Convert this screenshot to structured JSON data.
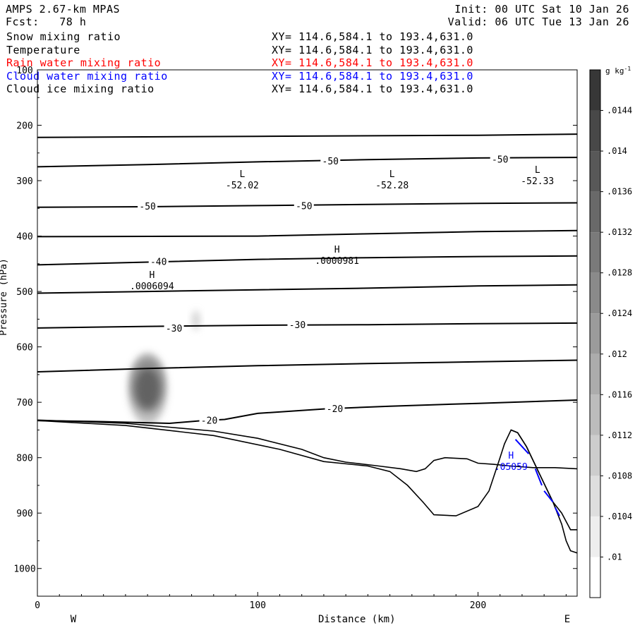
{
  "header": {
    "model": "AMPS 2.67-km MPAS",
    "forecast": "Fcst:   78 h",
    "init": "Init: 00 UTC Sat 10 Jan 26",
    "valid": "Valid: 06 UTC Tue 13 Jan 26"
  },
  "fields": [
    {
      "name": "Snow mixing ratio",
      "xy": "XY= 114.6,584.1 to 193.4,631.0",
      "color": "#000000"
    },
    {
      "name": "Temperature",
      "xy": "XY= 114.6,584.1 to 193.4,631.0",
      "color": "#000000"
    },
    {
      "name": "Rain water mixing ratio",
      "xy": "XY= 114.6,584.1 to 193.4,631.0",
      "color": "#ff0000"
    },
    {
      "name": "Cloud water mixing ratio",
      "xy": "XY= 114.6,584.1 to 193.4,631.0",
      "color": "#0000ff"
    },
    {
      "name": "Cloud ice mixing ratio",
      "xy": "XY= 114.6,584.1 to 193.4,631.0",
      "color": "#000000"
    }
  ],
  "chart_data": {
    "type": "cross-section",
    "xlabel": "Distance (km)",
    "ylabel": "Pressure (hPa)",
    "xlim": [
      0,
      245
    ],
    "ylim": [
      1050,
      100
    ],
    "x_ticks": [
      "0",
      "100",
      "200"
    ],
    "y_ticks": [
      "100",
      "200",
      "300",
      "400",
      "500",
      "600",
      "700",
      "800",
      "900",
      "1000"
    ],
    "left_end_label": "W",
    "right_end_label": "E",
    "colorbar": {
      "unit": "g kg",
      "unit_exp": "-1",
      "ticks": [
        ".01",
        ".0104",
        ".0108",
        ".0112",
        ".0116",
        ".012",
        ".0124",
        ".0128",
        ".0132",
        ".0136",
        ".014",
        ".0144"
      ]
    },
    "contour_labels": [
      {
        "text": "-50",
        "x": 133,
        "y": 264
      },
      {
        "text": "-50",
        "x": 210,
        "y": 261
      },
      {
        "text": "-50",
        "x": 50,
        "y": 346
      },
      {
        "text": "-50",
        "x": 121,
        "y": 345
      },
      {
        "text": "-40",
        "x": 55,
        "y": 446
      },
      {
        "text": "-30",
        "x": 62,
        "y": 566
      },
      {
        "text": "-30",
        "x": 118,
        "y": 560
      },
      {
        "text": "-20",
        "x": 135,
        "y": 711
      },
      {
        "text": "-20",
        "x": 78,
        "y": 732
      }
    ],
    "extrema": [
      {
        "kind": "L",
        "value": "-52.02",
        "x": 93,
        "y": 304,
        "color": "#000000"
      },
      {
        "kind": "L",
        "value": "-52.28",
        "x": 161,
        "y": 304,
        "color": "#000000"
      },
      {
        "kind": "L",
        "value": "-52.33",
        "x": 227,
        "y": 296,
        "color": "#000000"
      },
      {
        "kind": "H",
        "value": ".0000981",
        "x": 136,
        "y": 440,
        "color": "#000000"
      },
      {
        "kind": "H",
        "value": ".0006094",
        "x": 52,
        "y": 486,
        "color": "#000000"
      },
      {
        "kind": "H",
        "value": ".05059",
        "x": 215,
        "y": 812,
        "color": "#0000ff"
      }
    ],
    "isotherms": [
      {
        "p": [
          [
            0,
            222
          ],
          [
            100,
            220
          ],
          [
            200,
            218
          ],
          [
            245,
            216
          ]
        ]
      },
      {
        "p": [
          [
            0,
            275
          ],
          [
            50,
            271
          ],
          [
            100,
            266
          ],
          [
            150,
            262
          ],
          [
            200,
            259
          ],
          [
            245,
            258
          ]
        ]
      },
      {
        "p": [
          [
            0,
            348
          ],
          [
            50,
            347
          ],
          [
            100,
            345
          ],
          [
            150,
            343
          ],
          [
            200,
            341
          ],
          [
            245,
            340
          ]
        ]
      },
      {
        "p": [
          [
            0,
            401
          ],
          [
            100,
            400
          ],
          [
            150,
            396
          ],
          [
            200,
            392
          ],
          [
            245,
            390
          ]
        ]
      },
      {
        "p": [
          [
            0,
            452
          ],
          [
            50,
            447
          ],
          [
            100,
            442
          ],
          [
            150,
            439
          ],
          [
            200,
            437
          ],
          [
            245,
            436
          ]
        ]
      },
      {
        "p": [
          [
            0,
            503
          ],
          [
            50,
            500
          ],
          [
            100,
            497
          ],
          [
            150,
            494
          ],
          [
            200,
            490
          ],
          [
            245,
            488
          ]
        ]
      },
      {
        "p": [
          [
            0,
            566
          ],
          [
            50,
            563
          ],
          [
            100,
            561
          ],
          [
            150,
            560
          ],
          [
            200,
            558
          ],
          [
            245,
            557
          ]
        ]
      },
      {
        "p": [
          [
            0,
            645
          ],
          [
            50,
            639
          ],
          [
            100,
            634
          ],
          [
            150,
            630
          ],
          [
            200,
            627
          ],
          [
            245,
            624
          ]
        ]
      },
      {
        "p": [
          [
            0,
            733
          ],
          [
            30,
            735
          ],
          [
            60,
            738
          ],
          [
            75,
            733
          ],
          [
            85,
            731
          ],
          [
            100,
            720
          ],
          [
            130,
            712
          ],
          [
            160,
            707
          ],
          [
            200,
            702
          ],
          [
            245,
            696
          ]
        ]
      }
    ],
    "terrain_lines": [
      {
        "p": [
          [
            0,
            732
          ],
          [
            20,
            735
          ],
          [
            40,
            738
          ],
          [
            60,
            745
          ],
          [
            80,
            752
          ],
          [
            100,
            765
          ],
          [
            120,
            785
          ],
          [
            130,
            800
          ],
          [
            140,
            808
          ],
          [
            155,
            815
          ],
          [
            165,
            820
          ],
          [
            172,
            825
          ],
          [
            176,
            820
          ],
          [
            180,
            805
          ],
          [
            185,
            800
          ],
          [
            195,
            802
          ],
          [
            200,
            810
          ],
          [
            207,
            812
          ],
          [
            215,
            815
          ],
          [
            225,
            818
          ],
          [
            235,
            818
          ],
          [
            245,
            820
          ]
        ]
      },
      {
        "p": [
          [
            0,
            733
          ],
          [
            40,
            742
          ],
          [
            80,
            760
          ],
          [
            110,
            785
          ],
          [
            130,
            807
          ],
          [
            150,
            815
          ],
          [
            160,
            825
          ],
          [
            168,
            850
          ],
          [
            175,
            880
          ],
          [
            180,
            903
          ],
          [
            190,
            905
          ],
          [
            200,
            888
          ],
          [
            205,
            860
          ],
          [
            210,
            800
          ],
          [
            212,
            775
          ],
          [
            215,
            750
          ],
          [
            218,
            755
          ],
          [
            222,
            780
          ],
          [
            228,
            830
          ],
          [
            234,
            880
          ],
          [
            238,
            920
          ],
          [
            240,
            950
          ],
          [
            242,
            968
          ],
          [
            245,
            972
          ]
        ]
      },
      {
        "p": [
          [
            215,
            750
          ],
          [
            218,
            755
          ],
          [
            222,
            780
          ],
          [
            228,
            830
          ],
          [
            234,
            880
          ],
          [
            238,
            900
          ],
          [
            242,
            930
          ],
          [
            245,
            930
          ]
        ]
      }
    ],
    "cloud_water_segments": [
      {
        "p": [
          [
            217,
            767
          ],
          [
            223,
            793
          ]
        ]
      },
      {
        "p": [
          [
            226,
            820
          ],
          [
            229,
            850
          ]
        ]
      },
      {
        "p": [
          [
            230,
            860
          ],
          [
            234,
            880
          ]
        ]
      },
      {
        "p": [
          [
            235,
            890
          ],
          [
            237,
            905
          ]
        ]
      }
    ],
    "snow_shading": [
      {
        "x": 50,
        "p": 675,
        "rx": 9,
        "rp": 65,
        "val": 0.0112
      },
      {
        "x": 50,
        "p": 670,
        "rx": 7.5,
        "rp": 50,
        "val": 0.0124
      },
      {
        "x": 50,
        "p": 675,
        "rx": 5.5,
        "rp": 35,
        "val": 0.0136
      },
      {
        "x": 72,
        "p": 552,
        "rx": 2,
        "rp": 18,
        "val": 0.0106
      }
    ]
  }
}
